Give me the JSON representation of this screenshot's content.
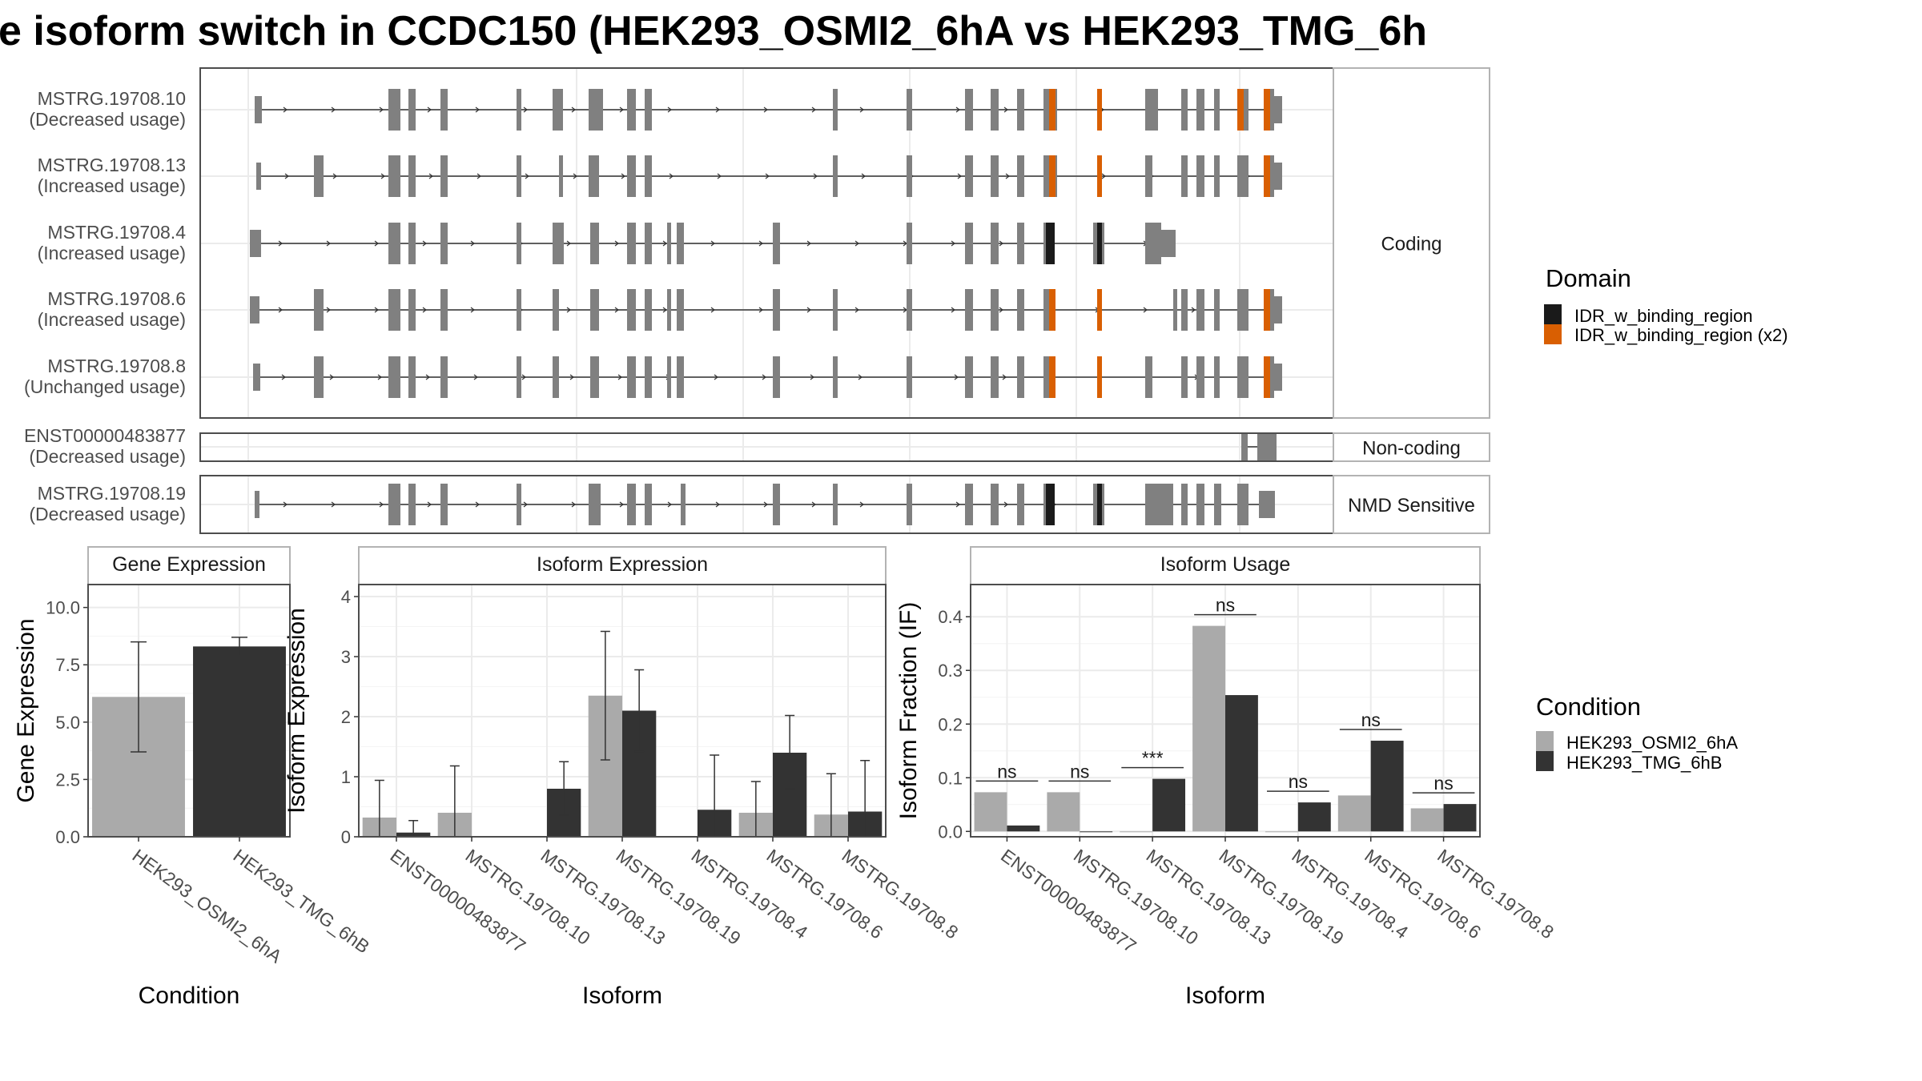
{
  "title": "e isoform switch in CCDC150 (HEK293_OSMI2_6hA vs HEK293_TMG_6h",
  "colors": {
    "cond1": "#aaaaaa",
    "cond2": "#333333",
    "exon": "#808080",
    "domain1": "#1a1a1a",
    "domain2": "#d95f02",
    "grid": "#ebebeb",
    "panel_border": "#4d4d4d",
    "strip_border": "#b3b3b3"
  },
  "structure": {
    "coding_label": "Coding",
    "noncoding_label": "Non-coding",
    "nmd_label": "NMD Sensitive",
    "transcripts": [
      {
        "id": "MSTRG.19708.10",
        "usage": "(Decreased usage)",
        "group": "coding"
      },
      {
        "id": "MSTRG.19708.13",
        "usage": "(Increased usage)",
        "group": "coding"
      },
      {
        "id": "MSTRG.19708.4",
        "usage": "(Increased usage)",
        "group": "coding"
      },
      {
        "id": "MSTRG.19708.6",
        "usage": "(Increased usage)",
        "group": "coding"
      },
      {
        "id": "MSTRG.19708.8",
        "usage": "(Unchanged usage)",
        "group": "coding"
      },
      {
        "id": "ENST00000483877",
        "usage": "(Decreased usage)",
        "group": "noncoding"
      },
      {
        "id": "MSTRG.19708.19",
        "usage": "(Decreased usage)",
        "group": "nmd"
      }
    ]
  },
  "domain_legend": {
    "title": "Domain",
    "items": [
      "IDR_w_binding_region",
      "IDR_w_binding_region (x2)"
    ]
  },
  "condition_legend": {
    "title": "Condition",
    "items": [
      "HEK293_OSMI2_6hA",
      "HEK293_TMG_6hB"
    ]
  },
  "chart_data": [
    {
      "type": "bar",
      "title": "Gene Expression",
      "xlabel": "Condition",
      "ylabel": "Gene Expression",
      "categories": [
        "HEK293_OSMI2_6hA",
        "HEK293_TMG_6hB"
      ],
      "values": [
        6.1,
        8.3
      ],
      "error_low": [
        3.7,
        7.9
      ],
      "error_high": [
        8.5,
        8.7
      ],
      "ylim": [
        0,
        11
      ],
      "yticks": [
        "0.0",
        "2.5",
        "5.0",
        "7.5",
        "10.0"
      ],
      "ytick_values": [
        0,
        2.5,
        5,
        7.5,
        10
      ],
      "grid": true
    },
    {
      "type": "bar",
      "title": "Isoform Expression",
      "xlabel": "Isoform",
      "ylabel": "Isoform Expression",
      "categories": [
        "ENST00000483877",
        "MSTRG.19708.10",
        "MSTRG.19708.13",
        "MSTRG.19708.19",
        "MSTRG.19708.4",
        "MSTRG.19708.6",
        "MSTRG.19708.8"
      ],
      "series": [
        {
          "name": "HEK293_OSMI2_6hA",
          "values": [
            0.32,
            0.4,
            0.0,
            2.35,
            0.0,
            0.4,
            0.37
          ],
          "error_low": [
            0.0,
            0.0,
            0.0,
            1.28,
            0.0,
            0.0,
            0.0
          ],
          "error_high": [
            0.94,
            1.18,
            0.0,
            3.42,
            0.0,
            0.92,
            1.05
          ]
        },
        {
          "name": "HEK293_TMG_6hB",
          "values": [
            0.07,
            0.0,
            0.8,
            2.1,
            0.45,
            1.4,
            0.42
          ],
          "error_low": [
            0.0,
            0.0,
            0.36,
            1.42,
            0.0,
            0.8,
            0.0
          ],
          "error_high": [
            0.27,
            0.0,
            1.25,
            2.78,
            1.36,
            2.02,
            1.27
          ]
        }
      ],
      "ylim": [
        0,
        4.2
      ],
      "yticks": [
        "0",
        "1",
        "2",
        "3",
        "4"
      ],
      "ytick_values": [
        0,
        1,
        2,
        3,
        4
      ],
      "grid": true
    },
    {
      "type": "bar",
      "title": "Isoform Usage",
      "xlabel": "Isoform",
      "ylabel": "Isoform Fraction (IF)",
      "categories": [
        "ENST00000483877",
        "MSTRG.19708.10",
        "MSTRG.19708.13",
        "MSTRG.19708.19",
        "MSTRG.19708.4",
        "MSTRG.19708.6",
        "MSTRG.19708.8"
      ],
      "series": [
        {
          "name": "HEK293_OSMI2_6hA",
          "values": [
            0.073,
            0.073,
            0.0,
            0.383,
            0.0,
            0.067,
            0.043
          ]
        },
        {
          "name": "HEK293_TMG_6hB",
          "values": [
            0.011,
            0.0,
            0.098,
            0.254,
            0.054,
            0.169,
            0.051
          ]
        }
      ],
      "significance": [
        "ns",
        "ns",
        "***",
        "ns",
        "ns",
        "ns",
        "ns"
      ],
      "ylim": [
        -0.01,
        0.46
      ],
      "yticks": [
        "0.0",
        "0.1",
        "0.2",
        "0.3",
        "0.4"
      ],
      "ytick_values": [
        0,
        0.1,
        0.2,
        0.3,
        0.4
      ],
      "grid": true
    }
  ]
}
